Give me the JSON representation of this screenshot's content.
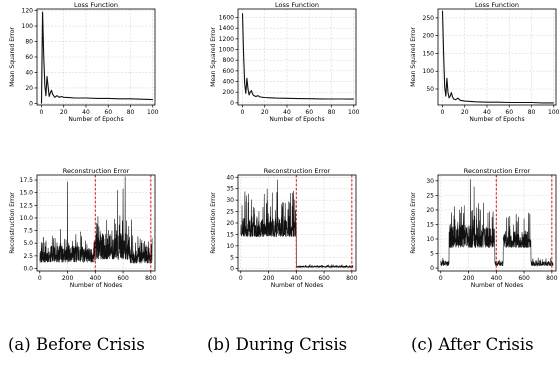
{
  "chart_data": [
    {
      "type": "line",
      "title": "Loss Function",
      "xlabel": "Number of Epochs",
      "ylabel": "Mean Squared Error",
      "xlim": [
        -4,
        102
      ],
      "ylim": [
        -2,
        122
      ],
      "xticks": [
        0,
        20,
        40,
        60,
        80,
        100
      ],
      "yticks": [
        0,
        20,
        40,
        60,
        80,
        100,
        120
      ],
      "grid": true,
      "x": [
        0,
        1,
        2,
        3,
        4,
        5,
        6,
        7,
        8,
        9,
        10,
        12,
        14,
        16,
        18,
        20,
        25,
        30,
        40,
        50,
        60,
        70,
        80,
        90,
        100
      ],
      "y": [
        0,
        118,
        62,
        24,
        10,
        35,
        22,
        9,
        14,
        17,
        12,
        8,
        10,
        8,
        9,
        8,
        7.5,
        7,
        7,
        6.5,
        6.5,
        6,
        6,
        5.5,
        5
      ]
    },
    {
      "type": "line",
      "title": "Loss Function",
      "xlabel": "Number of Epochs",
      "ylabel": "Mean Squared Error",
      "xlim": [
        -4,
        102
      ],
      "ylim": [
        -40,
        1760
      ],
      "xticks": [
        0,
        20,
        40,
        60,
        80,
        100
      ],
      "yticks": [
        0,
        200,
        400,
        600,
        800,
        1000,
        1200,
        1400,
        1600
      ],
      "grid": true,
      "x": [
        0,
        1,
        2,
        3,
        4,
        5,
        6,
        7,
        8,
        9,
        10,
        12,
        14,
        16,
        18,
        20,
        25,
        30,
        40,
        50,
        60,
        70,
        80,
        90,
        100
      ],
      "y": [
        1680,
        900,
        350,
        180,
        460,
        260,
        150,
        200,
        230,
        170,
        140,
        120,
        135,
        110,
        105,
        100,
        95,
        90,
        85,
        80,
        78,
        75,
        73,
        72,
        70
      ]
    },
    {
      "type": "line",
      "title": "Loss Function",
      "xlabel": "Number of Epochs",
      "ylabel": "Mean Squared Error",
      "xlim": [
        -4,
        102
      ],
      "ylim": [
        5,
        275
      ],
      "xticks": [
        0,
        20,
        40,
        60,
        80,
        100
      ],
      "yticks": [
        50,
        100,
        150,
        200,
        250
      ],
      "grid": true,
      "x": [
        0,
        1,
        2,
        3,
        4,
        5,
        6,
        7,
        8,
        9,
        10,
        12,
        14,
        16,
        18,
        20,
        25,
        30,
        40,
        50,
        60,
        70,
        80,
        90,
        100
      ],
      "y": [
        270,
        150,
        55,
        30,
        80,
        40,
        25,
        30,
        40,
        28,
        22,
        20,
        24,
        18,
        17,
        16,
        15,
        14,
        13,
        13,
        12,
        12,
        12,
        11,
        11
      ]
    },
    {
      "type": "bar",
      "title": "Reconstruction Error",
      "xlabel": "Number of Nodes",
      "ylabel": "Reconstruction Error",
      "xlim": [
        -20,
        830
      ],
      "ylim": [
        -0.5,
        18.5
      ],
      "xticks": [
        0,
        200,
        400,
        600,
        800
      ],
      "yticks": [
        0.0,
        2.5,
        5.0,
        7.5,
        10.0,
        12.5,
        15.0,
        17.5
      ],
      "ytick_labels": [
        "0.0",
        "2.5",
        "5.0",
        "7.5",
        "10.0",
        "12.5",
        "15.0",
        "17.5"
      ],
      "grid": true,
      "vlines": [
        400,
        800
      ],
      "n": 810,
      "segments": [
        [
          0,
          400,
          1.2,
          4.5
        ],
        [
          400,
          650,
          1.8,
          7
        ],
        [
          650,
          810,
          1.0,
          4.5
        ]
      ],
      "spikes": [
        [
          18,
          4.2
        ],
        [
          45,
          5.5
        ],
        [
          90,
          6.5
        ],
        [
          150,
          7.8
        ],
        [
          200,
          17.2
        ],
        [
          260,
          6.8
        ],
        [
          295,
          7.3
        ],
        [
          330,
          5.5
        ],
        [
          410,
          9
        ],
        [
          455,
          6.8
        ],
        [
          520,
          7.5
        ],
        [
          560,
          15.5
        ],
        [
          600,
          15.8
        ],
        [
          615,
          18.2
        ],
        [
          660,
          9.7
        ],
        [
          745,
          5
        ]
      ],
      "seed": 11
    },
    {
      "type": "bar",
      "title": "Reconstruction Error",
      "xlabel": "Number of Nodes",
      "ylabel": "Reconstruction Error",
      "xlim": [
        -20,
        830
      ],
      "ylim": [
        -1,
        41
      ],
      "xticks": [
        0,
        200,
        400,
        600,
        800
      ],
      "yticks": [
        0,
        5,
        10,
        15,
        20,
        25,
        30,
        35,
        40
      ],
      "grid": true,
      "vlines": [
        400,
        800
      ],
      "n": 810,
      "segments": [
        [
          0,
          400,
          14,
          23
        ],
        [
          400,
          810,
          0.6,
          1.3
        ]
      ],
      "spikes": [
        [
          40,
          32
        ],
        [
          90,
          27
        ],
        [
          160,
          27
        ],
        [
          190,
          35
        ],
        [
          265,
          39
        ],
        [
          300,
          27
        ],
        [
          340,
          26
        ]
      ],
      "seed": 23
    },
    {
      "type": "bar",
      "title": "Reconstruction Error",
      "xlabel": "Number of Nodes",
      "ylabel": "Reconstruction Error",
      "xlim": [
        -20,
        830
      ],
      "ylim": [
        -1,
        32
      ],
      "xticks": [
        0,
        200,
        400,
        600,
        800
      ],
      "yticks": [
        0,
        5,
        10,
        15,
        20,
        25,
        30
      ],
      "grid": true,
      "vlines": [
        400,
        800
      ],
      "n": 810,
      "segments": [
        [
          0,
          60,
          0.8,
          2.5
        ],
        [
          60,
          390,
          7,
          15
        ],
        [
          390,
          450,
          0.8,
          2.5
        ],
        [
          450,
          650,
          7,
          13
        ],
        [
          650,
          810,
          0.8,
          2.5
        ]
      ],
      "spikes": [
        [
          95,
          18
        ],
        [
          150,
          21
        ],
        [
          215,
          30.5
        ],
        [
          240,
          28
        ],
        [
          285,
          20
        ],
        [
          340,
          19
        ],
        [
          550,
          16
        ],
        [
          600,
          17
        ]
      ],
      "seed": 37
    }
  ],
  "captions": [
    "(a) Before Crisis",
    "(b) During Crisis",
    "(c) After Crisis"
  ]
}
